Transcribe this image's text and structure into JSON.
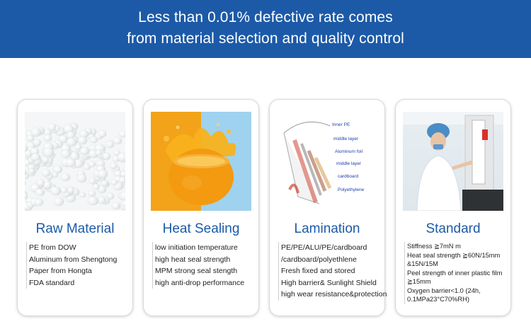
{
  "header": {
    "line1": "Less than 0.01% defective rate comes",
    "line2": "from material selection and quality control"
  },
  "colors": {
    "header_bg": "#1c5aa8",
    "title_blue": "#1c5aa8"
  },
  "cards": [
    {
      "title": "Raw Material",
      "image": "plastic-pellets-photo",
      "items": [
        "PE from DOW",
        "Aluminum from Shengtong",
        "Paper from Hongta",
        "FDA standard"
      ]
    },
    {
      "title": "Heat Sealing",
      "image": "orange-splash-photo",
      "items": [
        "low initiation temperature",
        "high heat seal strength",
        "MPM strong seal stength",
        "high anti-drop performance"
      ]
    },
    {
      "title": "Lamination",
      "image": "lamination-layers-diagram",
      "diagram_labels": [
        "Inner PE",
        "middle layer",
        "Aluminum foil",
        "middle layer",
        "cardboard",
        "Polyethylene"
      ],
      "items": [
        "PE/PE/ALU/PE/cardboard",
        "/cardboard/polyethlene",
        "Fresh fixed and stored",
        "High barrier& Sunlight Shield",
        "high wear resistance&protection"
      ]
    },
    {
      "title": "Standard",
      "image": "lab-technician-photo",
      "items": [
        "Stiffness ≧7mN m",
        "Heat seal strength ≧60N/15mm &15N/15M",
        "Peel strength of inner plastic film ≧15mm",
        "Oxygen barrier<1.0 (24h, 0.1MPa23°C70%RH)"
      ]
    }
  ]
}
